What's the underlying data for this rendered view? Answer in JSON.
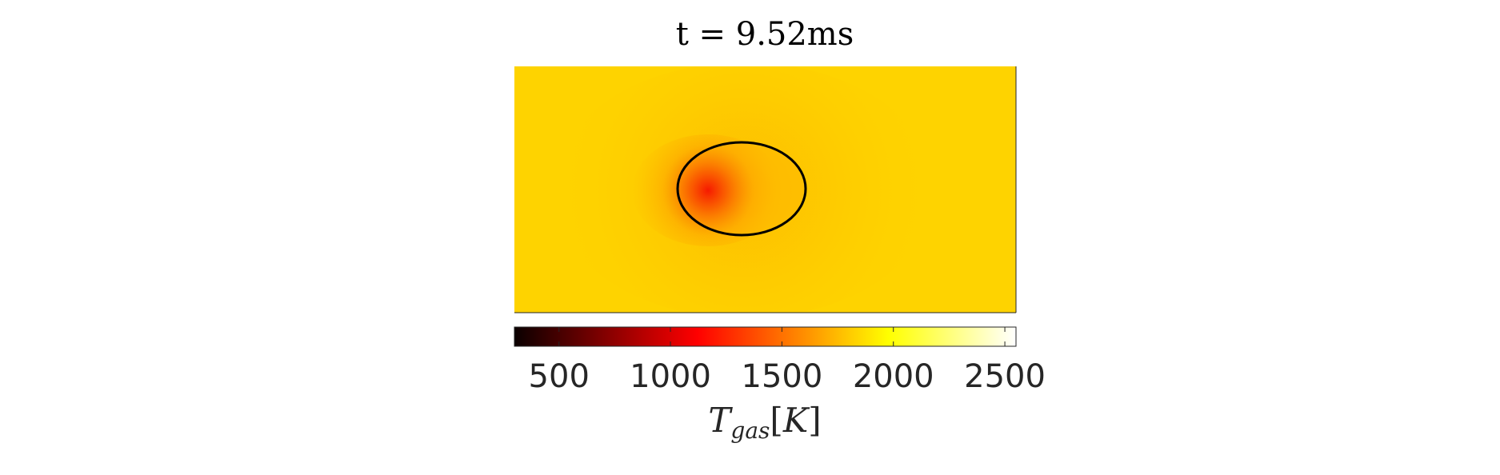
{
  "chart_data": {
    "type": "heatmap",
    "title": "t = 9.52ms",
    "field": {
      "quantity": "gas temperature",
      "background_value": 1900,
      "hot_spot_min_value": 1200,
      "inside_contour_value": 1750
    },
    "contour": {
      "shape": "ellipse",
      "color": "#000000"
    },
    "colorbar": {
      "colormap": "hot",
      "range": [
        300,
        2550
      ],
      "ticks": [
        500,
        1000,
        1500,
        2000,
        2500
      ],
      "tick_labels": [
        "500",
        "1000",
        "1500",
        "2000",
        "2500"
      ],
      "label": {
        "symbol": "T",
        "subscript": "gas",
        "unit_open": "[",
        "unit": "K",
        "unit_close": "]"
      },
      "orientation": "horizontal",
      "placement": "below"
    },
    "colors": {
      "background": "#fed300",
      "inner": "#fdb800",
      "hot_spot": "#f61a00",
      "axis_line": "#262626"
    }
  }
}
